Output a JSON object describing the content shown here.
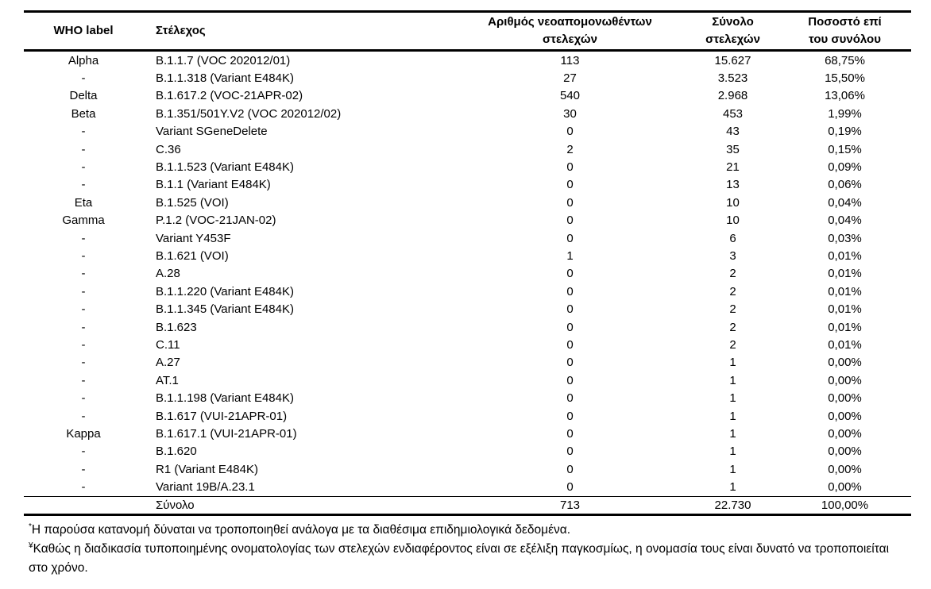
{
  "table": {
    "header": {
      "who_label": "WHO label",
      "strain": "Στέλεχος",
      "new_isolates": "Αριθμός νεοαπομονωθέντων\nστελεχών",
      "total_strains": "Σύνολο\nστελεχών",
      "percent_of_total": "Ποσοστό επί\nτου συνόλου"
    },
    "rows": [
      {
        "who": "Alpha",
        "strain": "B.1.1.7 (VOC 202012/01)",
        "new": "113",
        "total": "15.627",
        "pct": "68,75%"
      },
      {
        "who": "-",
        "strain": "B.1.1.318 (Variant E484K)",
        "new": "27",
        "total": "3.523",
        "pct": "15,50%"
      },
      {
        "who": "Delta",
        "strain": "B.1.617.2 (VOC-21APR-02)",
        "new": "540",
        "total": "2.968",
        "pct": "13,06%"
      },
      {
        "who": "Beta",
        "strain": "B.1.351/501Y.V2 (VOC 202012/02)",
        "new": "30",
        "total": "453",
        "pct": "1,99%"
      },
      {
        "who": "-",
        "strain": "Variant SGeneDelete",
        "new": "0",
        "total": "43",
        "pct": "0,19%"
      },
      {
        "who": "-",
        "strain": "C.36",
        "new": "2",
        "total": "35",
        "pct": "0,15%"
      },
      {
        "who": "-",
        "strain": "B.1.1.523 (Variant E484K)",
        "new": "0",
        "total": "21",
        "pct": "0,09%"
      },
      {
        "who": "-",
        "strain": "B.1.1 (Variant E484K)",
        "new": "0",
        "total": "13",
        "pct": "0,06%"
      },
      {
        "who": "Eta",
        "strain": "B.1.525 (VOI)",
        "new": "0",
        "total": "10",
        "pct": "0,04%"
      },
      {
        "who": "Gamma",
        "strain": "P.1.2 (VOC-21JAN-02)",
        "new": "0",
        "total": "10",
        "pct": "0,04%"
      },
      {
        "who": "-",
        "strain": "Variant Y453F",
        "new": "0",
        "total": "6",
        "pct": "0,03%"
      },
      {
        "who": "-",
        "strain": "B.1.621 (VOI)",
        "new": "1",
        "total": "3",
        "pct": "0,01%"
      },
      {
        "who": "-",
        "strain": "A.28",
        "new": "0",
        "total": "2",
        "pct": "0,01%"
      },
      {
        "who": "-",
        "strain": "B.1.1.220 (Variant E484K)",
        "new": "0",
        "total": "2",
        "pct": "0,01%"
      },
      {
        "who": "-",
        "strain": "B.1.1.345 (Variant E484K)",
        "new": "0",
        "total": "2",
        "pct": "0,01%"
      },
      {
        "who": "-",
        "strain": "B.1.623",
        "new": "0",
        "total": "2",
        "pct": "0,01%"
      },
      {
        "who": "-",
        "strain": "C.11",
        "new": "0",
        "total": "2",
        "pct": "0,01%"
      },
      {
        "who": "-",
        "strain": "A.27",
        "new": "0",
        "total": "1",
        "pct": "0,00%"
      },
      {
        "who": "-",
        "strain": "AT.1",
        "new": "0",
        "total": "1",
        "pct": "0,00%"
      },
      {
        "who": "-",
        "strain": "B.1.1.198 (Variant E484K)",
        "new": "0",
        "total": "1",
        "pct": "0,00%"
      },
      {
        "who": "-",
        "strain": "B.1.617 (VUI-21APR-01)",
        "new": "0",
        "total": "1",
        "pct": "0,00%"
      },
      {
        "who": "Kappa",
        "strain": "B.1.617.1 (VUI-21APR-01)",
        "new": "0",
        "total": "1",
        "pct": "0,00%"
      },
      {
        "who": "-",
        "strain": "B.1.620",
        "new": "0",
        "total": "1",
        "pct": "0,00%"
      },
      {
        "who": "-",
        "strain": "R1 (Variant E484K)",
        "new": "0",
        "total": "1",
        "pct": "0,00%"
      },
      {
        "who": "-",
        "strain": "Variant 19B/A.23.1",
        "new": "0",
        "total": "1",
        "pct": "0,00%"
      }
    ],
    "total_row": {
      "who": "",
      "label": "Σύνολο",
      "new": "713",
      "total": "22.730",
      "pct": "100,00%"
    }
  },
  "footnotes": [
    {
      "marker": "*",
      "text": "Η παρούσα κατανομή δύναται να τροποποιηθεί ανάλογα με τα διαθέσιμα επιδημιολογικά δεδομένα."
    },
    {
      "marker": "¥",
      "text": "Καθώς η διαδικασία τυποποιημένης ονοματολογίας των στελεχών ενδιαφέροντος είναι σε εξέλιξη παγκοσμίως, η ονομασία τους είναι δυνατό να τροποποιείται στο χρόνο."
    }
  ],
  "colors": {
    "text": "#000000",
    "background": "#ffffff",
    "rule": "#000000"
  }
}
